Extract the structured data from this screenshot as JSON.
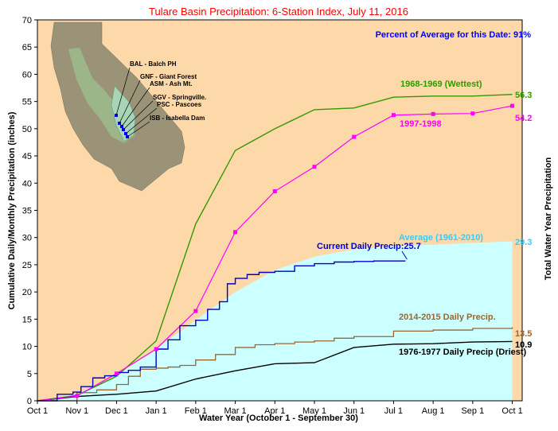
{
  "chart_data": {
    "type": "line",
    "title": "Tulare Basin Precipitation: 6-Station Index, July 11, 2016",
    "subtitle": "Percent of Average for this Date: 91%",
    "xlabel": "Water Year (October 1 - September 30)",
    "ylabel": "Cumulative Daily/Monthly Precipitation (inches)",
    "ylabel_right": "Total Water Year Precipitation",
    "ylim": [
      0,
      70
    ],
    "yticks": [
      "0",
      "5",
      "10",
      "15",
      "20",
      "25",
      "30",
      "35",
      "40",
      "45",
      "50",
      "55",
      "60",
      "65",
      "70"
    ],
    "xticks": [
      "Oct 1",
      "Nov 1",
      "Dec 1",
      "Jan 1",
      "Feb 1",
      "Mar 1",
      "Apr 1",
      "May 1",
      "Jun 1",
      "Jul 1",
      "Aug 1",
      "Sep 1",
      "Oct 1"
    ],
    "grid": false,
    "colors": {
      "background": "#fdd9a9",
      "average_fill": "#ccffff",
      "wettest": "#339900",
      "y1997": "#ff00ff",
      "current": "#0000cc",
      "y2015": "#996633",
      "driest": "#000000",
      "average_label": "#33ccff",
      "title": "#ff0000",
      "subtitle": "#0000ff"
    },
    "series": [
      {
        "name": "Average (1961-2010)",
        "end_label": "29.3",
        "x": [
          0,
          1,
          2,
          3,
          4,
          5,
          6,
          7,
          8,
          9,
          10,
          11,
          12
        ],
        "values": [
          0,
          1.3,
          4.6,
          9.5,
          14.8,
          20.0,
          24.0,
          26.5,
          27.8,
          28.4,
          28.7,
          29.0,
          29.3
        ]
      },
      {
        "name": "1968-1969 (Wettest)",
        "end_label": "56.3",
        "x": [
          0,
          1,
          2,
          3,
          4,
          5,
          6,
          7,
          8,
          9,
          10,
          11,
          12
        ],
        "values": [
          0,
          1.0,
          4.5,
          11.0,
          32.5,
          46.0,
          50.0,
          53.5,
          53.8,
          55.8,
          56.0,
          56.0,
          56.3
        ]
      },
      {
        "name": "1997-1998",
        "end_label": "54.2",
        "x": [
          0,
          1,
          2,
          3,
          4,
          5,
          6,
          7,
          8,
          9,
          10,
          11,
          12
        ],
        "values": [
          0,
          0.9,
          5.0,
          9.5,
          16.5,
          31.0,
          38.5,
          43.0,
          48.5,
          52.5,
          52.7,
          52.8,
          54.2
        ]
      },
      {
        "name": "Current Daily Precip:25.7",
        "x": [
          0,
          0.5,
          0.9,
          1.1,
          1.4,
          1.7,
          2.0,
          2.3,
          2.6,
          3.0,
          3.3,
          3.6,
          4.0,
          4.3,
          4.6,
          4.8,
          5.0,
          5.3,
          5.6,
          6.0,
          6.5,
          7.0,
          7.5,
          8.0,
          8.5,
          9.0,
          9.3
        ],
        "values": [
          0,
          1.2,
          1.6,
          2.6,
          4.2,
          4.6,
          5.2,
          5.6,
          6.2,
          9.5,
          11.2,
          13.8,
          14.8,
          16.8,
          18.2,
          21.5,
          22.5,
          23.2,
          23.6,
          23.8,
          24.8,
          25.2,
          25.5,
          25.6,
          25.7,
          25.7,
          25.7
        ]
      },
      {
        "name": "2014-2015 Daily Precip.",
        "end_label": "13.5",
        "x": [
          0,
          1,
          1.5,
          2.0,
          2.3,
          2.6,
          3.0,
          3.3,
          3.6,
          4.0,
          4.5,
          5.0,
          5.5,
          6.0,
          6.5,
          7.0,
          7.5,
          8.0,
          9.0,
          10.0,
          11.0,
          12.0
        ],
        "values": [
          0,
          1.5,
          2.0,
          3.0,
          4.5,
          5.8,
          6.0,
          6.2,
          6.5,
          7.5,
          8.5,
          9.8,
          10.3,
          10.5,
          10.8,
          11.0,
          11.5,
          11.8,
          12.8,
          13.0,
          13.3,
          13.5
        ]
      },
      {
        "name": "1976-1977 Daily Precip (Driest)",
        "end_label": "10.9",
        "x": [
          0,
          1,
          2,
          3,
          4,
          5,
          6,
          7,
          8,
          9,
          10,
          11,
          12
        ],
        "values": [
          0,
          0.8,
          1.2,
          1.8,
          4.0,
          5.5,
          6.8,
          7.0,
          9.8,
          10.4,
          10.5,
          10.8,
          10.9
        ]
      }
    ],
    "map_labels": [
      "BAL - Balch PH",
      "GNF - Giant Forest",
      "ASM - Ash Mt.",
      "SGV - Springville.",
      "PSC - Pascoes",
      "ISB - Isabella Dam"
    ]
  }
}
